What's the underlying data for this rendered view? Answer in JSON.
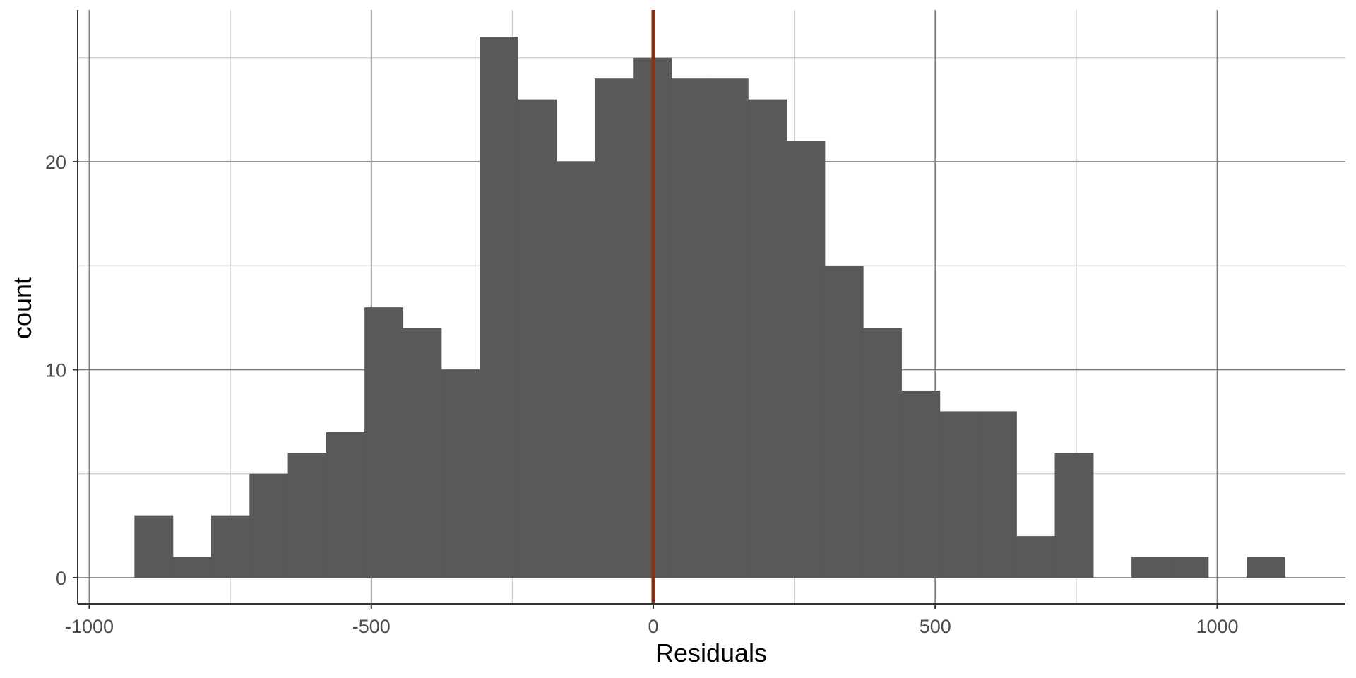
{
  "chart_data": {
    "type": "bar",
    "xlabel": "Residuals",
    "ylabel": "count",
    "xlim": [
      -1000,
      1200
    ],
    "ylim": [
      0,
      26
    ],
    "x_ticks": [
      -1000,
      -500,
      0,
      500,
      1000
    ],
    "x_tick_labels": [
      "-1000",
      "-500",
      "0",
      "500",
      "1000"
    ],
    "y_ticks": [
      0,
      10,
      20
    ],
    "y_tick_labels": [
      "0",
      "10",
      "20"
    ],
    "grid": true,
    "bins": [
      {
        "x0": -920,
        "x1": -852,
        "count": 3
      },
      {
        "x0": -852,
        "x1": -784,
        "count": 1
      },
      {
        "x0": -784,
        "x1": -716,
        "count": 3
      },
      {
        "x0": -716,
        "x1": -648,
        "count": 5
      },
      {
        "x0": -648,
        "x1": -580,
        "count": 6
      },
      {
        "x0": -580,
        "x1": -512,
        "count": 7
      },
      {
        "x0": -512,
        "x1": -444,
        "count": 13
      },
      {
        "x0": -444,
        "x1": -376,
        "count": 12
      },
      {
        "x0": -376,
        "x1": -308,
        "count": 10
      },
      {
        "x0": -308,
        "x1": -240,
        "count": 26
      },
      {
        "x0": -240,
        "x1": -172,
        "count": 23
      },
      {
        "x0": -172,
        "x1": -104,
        "count": 20
      },
      {
        "x0": -104,
        "x1": -36,
        "count": 24
      },
      {
        "x0": -36,
        "x1": 32,
        "count": 25
      },
      {
        "x0": 32,
        "x1": 100,
        "count": 24
      },
      {
        "x0": 100,
        "x1": 168,
        "count": 24
      },
      {
        "x0": 168,
        "x1": 236,
        "count": 23
      },
      {
        "x0": 236,
        "x1": 304,
        "count": 21
      },
      {
        "x0": 304,
        "x1": 372,
        "count": 15
      },
      {
        "x0": 372,
        "x1": 440,
        "count": 12
      },
      {
        "x0": 440,
        "x1": 508,
        "count": 9
      },
      {
        "x0": 508,
        "x1": 576,
        "count": 8
      },
      {
        "x0": 576,
        "x1": 644,
        "count": 8
      },
      {
        "x0": 644,
        "x1": 712,
        "count": 2
      },
      {
        "x0": 712,
        "x1": 780,
        "count": 6
      },
      {
        "x0": 780,
        "x1": 848,
        "count": 0
      },
      {
        "x0": 848,
        "x1": 916,
        "count": 1
      },
      {
        "x0": 916,
        "x1": 984,
        "count": 1
      },
      {
        "x0": 984,
        "x1": 1052,
        "count": 0
      },
      {
        "x0": 1052,
        "x1": 1120,
        "count": 1
      }
    ],
    "reference_line": {
      "x": 0,
      "color": "#8b2e16"
    },
    "bar_color": "#595959"
  }
}
